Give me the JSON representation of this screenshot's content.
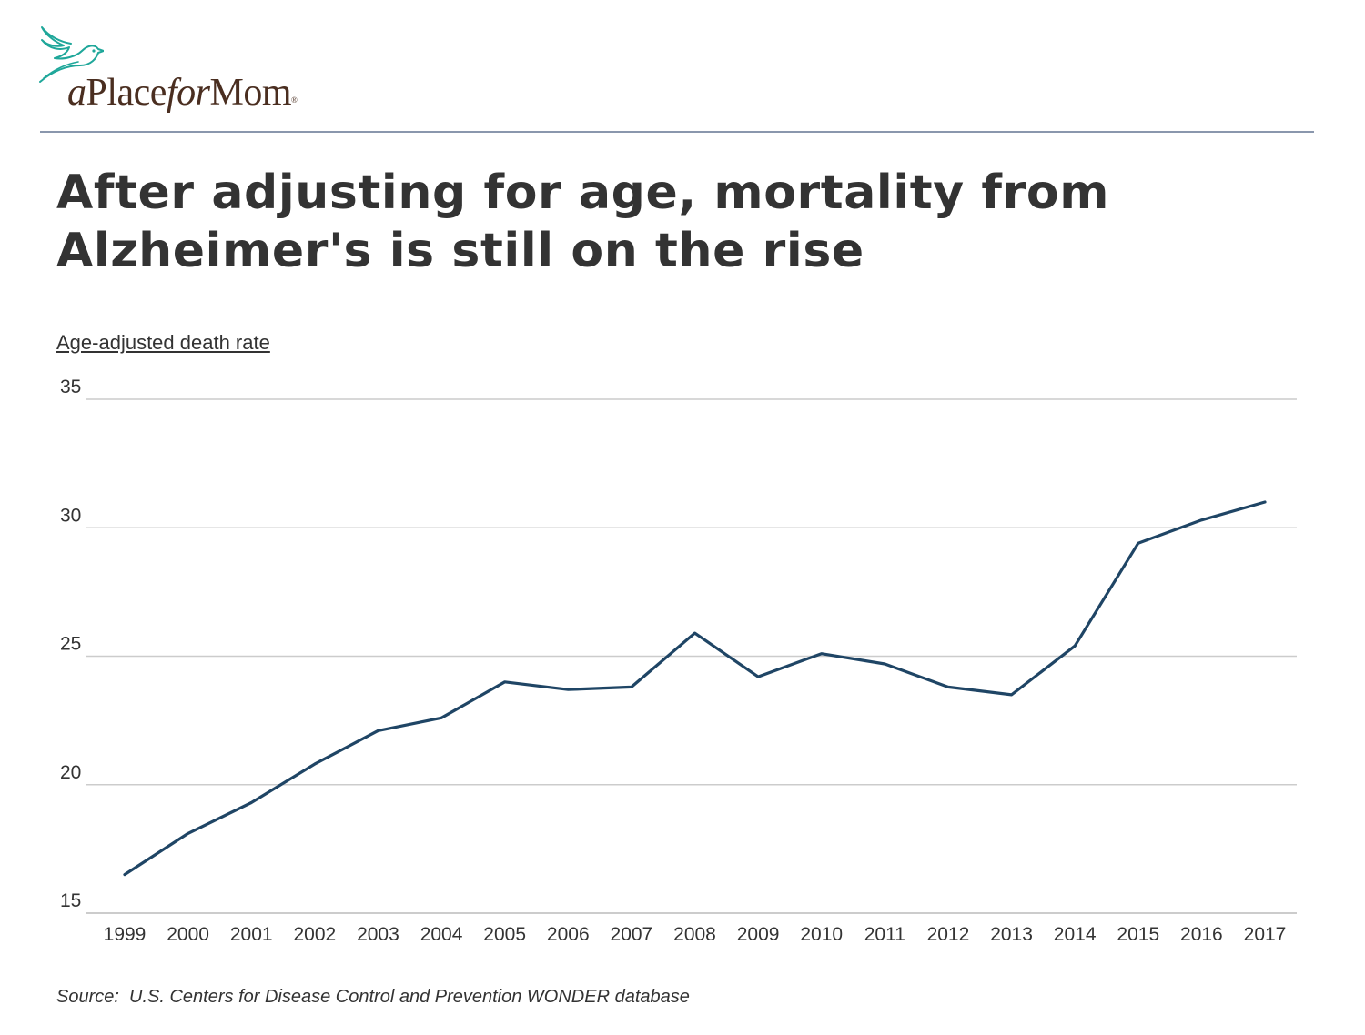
{
  "brand": {
    "logo_parts": [
      "a",
      "Place",
      "for",
      "Mom"
    ],
    "logo_mark": "®"
  },
  "colors": {
    "line": "#1f4565",
    "grid": "#cccccc",
    "rule": "#8a97ad",
    "logo_teal": "#1fa79a",
    "logo_brown": "#4a2e20"
  },
  "chart_data": {
    "type": "line",
    "title": "After adjusting for age, mortality from Alzheimer's is still on the rise",
    "ylabel": "Age-adjusted death rate",
    "xlabel": "",
    "source": "Source:  U.S. Centers for Disease Control and Prevention WONDER database",
    "ylim": [
      15,
      35
    ],
    "yticks": [
      15,
      20,
      25,
      30,
      35
    ],
    "grid": true,
    "legend": "none",
    "categories": [
      "1999",
      "2000",
      "2001",
      "2002",
      "2003",
      "2004",
      "2005",
      "2006",
      "2007",
      "2008",
      "2009",
      "2010",
      "2011",
      "2012",
      "2013",
      "2014",
      "2015",
      "2016",
      "2017"
    ],
    "series": [
      {
        "values": [
          16.5,
          18.1,
          19.3,
          20.8,
          22.1,
          22.6,
          24.0,
          23.7,
          23.8,
          25.9,
          24.2,
          25.1,
          24.7,
          23.8,
          23.5,
          25.4,
          29.4,
          30.3,
          31.0
        ]
      }
    ]
  }
}
